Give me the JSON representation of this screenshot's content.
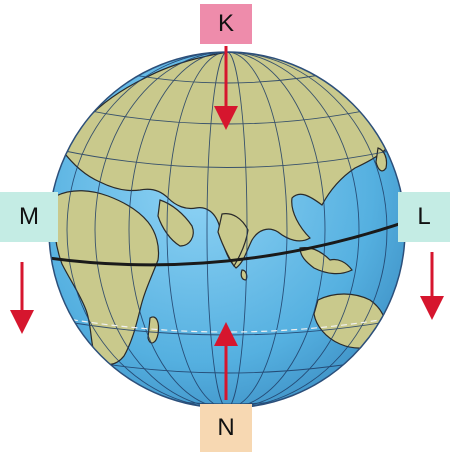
{
  "labels": {
    "top": "K",
    "left": "M",
    "right": "L",
    "bottom": "N"
  },
  "colors": {
    "ocean": "#5fb8e6",
    "land": "#c9c98c",
    "grid": "#1f3d66",
    "equator": "#1a1a1a",
    "arrow": "#d6162e",
    "tag_top": "#ee8cab",
    "tag_side": "#c4ece4",
    "tag_bottom": "#f7d8b2"
  },
  "arrows": [
    {
      "near": "K",
      "direction": "down"
    },
    {
      "near": "M",
      "direction": "down"
    },
    {
      "near": "L",
      "direction": "down"
    },
    {
      "near": "N",
      "direction": "up"
    }
  ]
}
